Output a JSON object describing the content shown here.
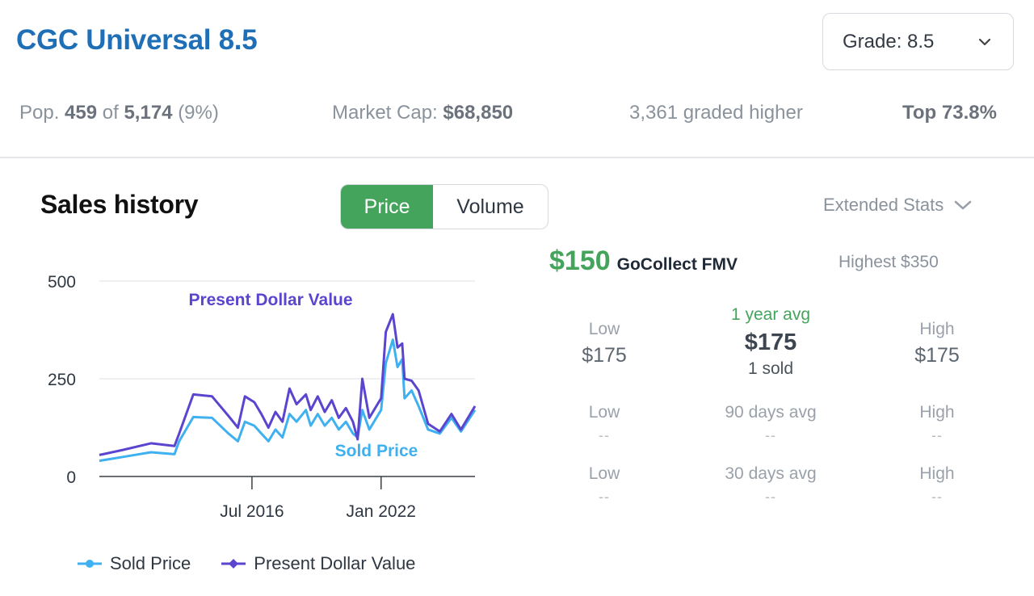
{
  "header": {
    "title": "CGC Universal 8.5",
    "grade_select_label": "Grade: 8.5"
  },
  "stats": {
    "pop_label": "Pop.",
    "pop_count": "459",
    "pop_of": "of",
    "pop_total": "5,174",
    "pop_pct": "(9%)",
    "market_cap_label": "Market Cap:",
    "market_cap_value": "$68,850",
    "graded_higher": "3,361 graded higher",
    "top_pct": "Top 73.8%"
  },
  "sales": {
    "title": "Sales history",
    "toggle_price": "Price",
    "toggle_volume": "Volume",
    "extended_stats": "Extended Stats"
  },
  "fmv": {
    "value": "$150",
    "label": "GoCollect FMV",
    "highest": "Highest $350"
  },
  "averages": {
    "year": {
      "low_label": "Low",
      "low_value": "$175",
      "avg_label": "1 year avg",
      "avg_value": "$175",
      "sold": "1 sold",
      "high_label": "High",
      "high_value": "$175"
    },
    "days90": {
      "low_label": "Low",
      "low_value": "--",
      "avg_label": "90 days avg",
      "avg_value": "--",
      "high_label": "High",
      "high_value": "--"
    },
    "days30": {
      "low_label": "Low",
      "low_value": "--",
      "avg_label": "30 days avg",
      "avg_value": "--",
      "high_label": "High",
      "high_value": "--"
    }
  },
  "colors": {
    "accent_blue": "#1e6fb6",
    "green": "#45a45c",
    "sold_price": "#3fb0f0",
    "present_value": "#5b45cf"
  },
  "chart_data": {
    "type": "line",
    "ylim": [
      0,
      500
    ],
    "yticks": [
      "500",
      "250",
      "0"
    ],
    "xtick_labels": [
      "Jul 2016",
      "Jan 2022"
    ],
    "annotations": [
      "Present Dollar Value",
      "Sold Price"
    ],
    "series": [
      {
        "name": "Sold Price",
        "points": [
          [
            2010.0,
            40
          ],
          [
            2011.0,
            50
          ],
          [
            2012.2,
            62
          ],
          [
            2013.2,
            57
          ],
          [
            2013.4,
            90
          ],
          [
            2014.0,
            152
          ],
          [
            2014.8,
            150
          ],
          [
            2015.5,
            110
          ],
          [
            2015.9,
            90
          ],
          [
            2016.2,
            140
          ],
          [
            2016.6,
            130
          ],
          [
            2016.9,
            110
          ],
          [
            2017.2,
            90
          ],
          [
            2017.5,
            120
          ],
          [
            2017.8,
            100
          ],
          [
            2018.1,
            160
          ],
          [
            2018.4,
            140
          ],
          [
            2018.8,
            170
          ],
          [
            2019.0,
            130
          ],
          [
            2019.3,
            160
          ],
          [
            2019.6,
            130
          ],
          [
            2019.9,
            150
          ],
          [
            2020.2,
            120
          ],
          [
            2020.5,
            140
          ],
          [
            2020.8,
            110
          ],
          [
            2021.0,
            100
          ],
          [
            2021.2,
            170
          ],
          [
            2021.5,
            120
          ],
          [
            2021.8,
            150
          ],
          [
            2022.0,
            170
          ],
          [
            2022.2,
            290
          ],
          [
            2022.5,
            350
          ],
          [
            2022.7,
            280
          ],
          [
            2022.9,
            300
          ],
          [
            2023.0,
            200
          ],
          [
            2023.3,
            220
          ],
          [
            2023.6,
            180
          ],
          [
            2024.0,
            120
          ],
          [
            2024.5,
            110
          ],
          [
            2025.0,
            150
          ],
          [
            2025.4,
            115
          ],
          [
            2026.0,
            170
          ]
        ]
      },
      {
        "name": "Present Dollar Value",
        "points": [
          [
            2010.0,
            55
          ],
          [
            2011.0,
            68
          ],
          [
            2012.2,
            85
          ],
          [
            2013.2,
            78
          ],
          [
            2013.4,
            110
          ],
          [
            2014.0,
            210
          ],
          [
            2014.8,
            205
          ],
          [
            2015.5,
            155
          ],
          [
            2015.9,
            125
          ],
          [
            2016.2,
            205
          ],
          [
            2016.6,
            190
          ],
          [
            2016.9,
            160
          ],
          [
            2017.2,
            125
          ],
          [
            2017.5,
            165
          ],
          [
            2017.8,
            140
          ],
          [
            2018.1,
            225
          ],
          [
            2018.4,
            185
          ],
          [
            2018.8,
            210
          ],
          [
            2019.0,
            170
          ],
          [
            2019.3,
            205
          ],
          [
            2019.6,
            165
          ],
          [
            2019.9,
            195
          ],
          [
            2020.2,
            150
          ],
          [
            2020.5,
            175
          ],
          [
            2020.8,
            140
          ],
          [
            2021.0,
            95
          ],
          [
            2021.2,
            250
          ],
          [
            2021.5,
            150
          ],
          [
            2021.8,
            180
          ],
          [
            2022.0,
            200
          ],
          [
            2022.2,
            370
          ],
          [
            2022.5,
            415
          ],
          [
            2022.7,
            330
          ],
          [
            2022.9,
            340
          ],
          [
            2023.0,
            250
          ],
          [
            2023.3,
            245
          ],
          [
            2023.6,
            220
          ],
          [
            2024.0,
            135
          ],
          [
            2024.5,
            115
          ],
          [
            2025.0,
            160
          ],
          [
            2025.4,
            120
          ],
          [
            2026.0,
            180
          ]
        ]
      }
    ]
  }
}
